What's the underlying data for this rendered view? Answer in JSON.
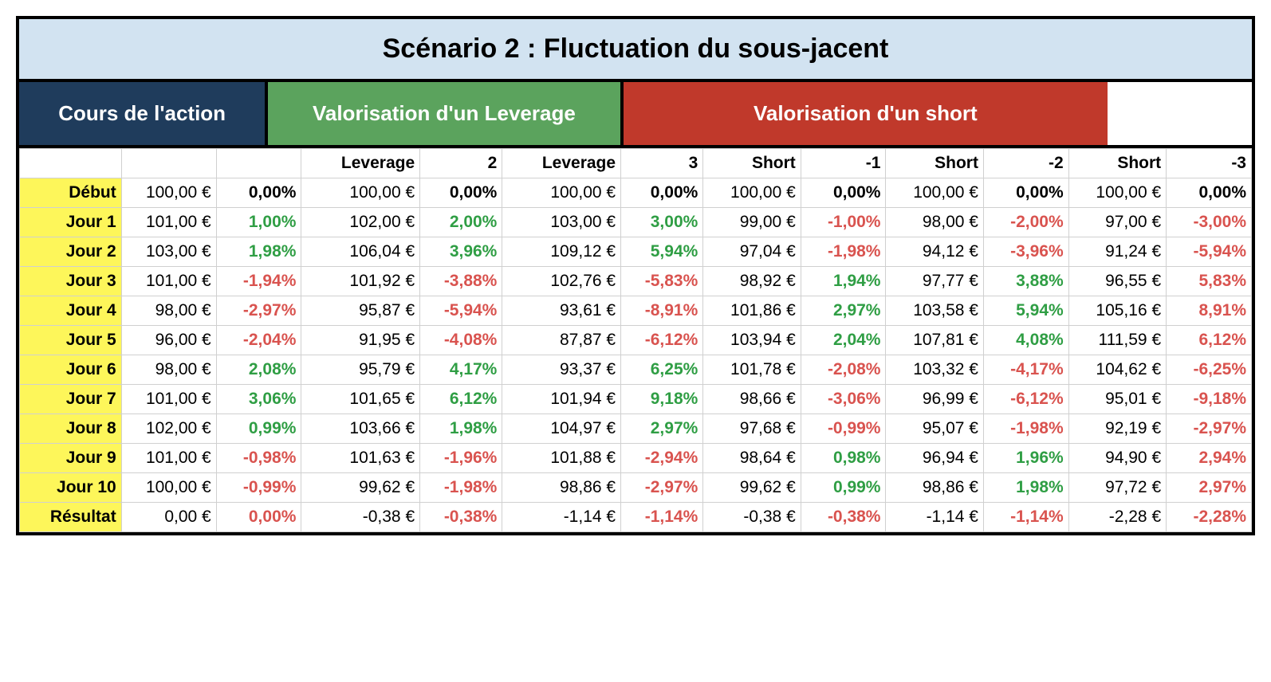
{
  "title": "Scénario 2 : Fluctuation du sous-jacent",
  "group_headers": {
    "g1": "Cours de l'action",
    "g2": "Valorisation d'un Leverage",
    "g3": "Valorisation d'un short"
  },
  "colors": {
    "title_bg": "#d2e3f1",
    "g1_bg": "#1f3c5c",
    "g2_bg": "#5ba35d",
    "g3_bg": "#c0392b",
    "label_bg": "#fdf65a",
    "pos": "#2f9e44",
    "neg": "#d9534f",
    "border": "#000000"
  },
  "column_widths_pct": [
    7.3,
    6.8,
    6.1,
    8.5,
    5.9,
    8.5,
    5.9,
    7.0,
    6.1,
    7.0,
    6.1,
    7.0,
    6.1
  ],
  "group_spans": [
    3,
    4,
    6
  ],
  "subheaders": [
    "",
    "",
    "",
    "Leverage",
    "2",
    "Leverage",
    "3",
    "Short",
    "-1",
    "Short",
    "-2",
    "Short",
    "-3"
  ],
  "row_labels": [
    "Début",
    "Jour 1",
    "Jour 2",
    "Jour 3",
    "Jour 4",
    "Jour 5",
    "Jour 6",
    "Jour 7",
    "Jour 8",
    "Jour 9",
    "Jour 10",
    "Résultat"
  ],
  "rows": [
    [
      {
        "v": "100,00 €"
      },
      {
        "v": "0,00%",
        "s": "zero"
      },
      {
        "v": "100,00 €"
      },
      {
        "v": "0,00%",
        "s": "zero"
      },
      {
        "v": "100,00 €"
      },
      {
        "v": "0,00%",
        "s": "zero"
      },
      {
        "v": "100,00 €"
      },
      {
        "v": "0,00%",
        "s": "zero"
      },
      {
        "v": "100,00 €"
      },
      {
        "v": "0,00%",
        "s": "zero"
      },
      {
        "v": "100,00 €"
      },
      {
        "v": "0,00%",
        "s": "zero"
      }
    ],
    [
      {
        "v": "101,00 €"
      },
      {
        "v": "1,00%",
        "s": "pos"
      },
      {
        "v": "102,00 €"
      },
      {
        "v": "2,00%",
        "s": "pos"
      },
      {
        "v": "103,00 €"
      },
      {
        "v": "3,00%",
        "s": "pos"
      },
      {
        "v": "99,00 €"
      },
      {
        "v": "-1,00%",
        "s": "neg"
      },
      {
        "v": "98,00 €"
      },
      {
        "v": "-2,00%",
        "s": "neg"
      },
      {
        "v": "97,00 €"
      },
      {
        "v": "-3,00%",
        "s": "neg"
      }
    ],
    [
      {
        "v": "103,00 €"
      },
      {
        "v": "1,98%",
        "s": "pos"
      },
      {
        "v": "106,04 €"
      },
      {
        "v": "3,96%",
        "s": "pos"
      },
      {
        "v": "109,12 €"
      },
      {
        "v": "5,94%",
        "s": "pos"
      },
      {
        "v": "97,04 €"
      },
      {
        "v": "-1,98%",
        "s": "neg"
      },
      {
        "v": "94,12 €"
      },
      {
        "v": "-3,96%",
        "s": "neg"
      },
      {
        "v": "91,24 €"
      },
      {
        "v": "-5,94%",
        "s": "neg"
      }
    ],
    [
      {
        "v": "101,00 €"
      },
      {
        "v": "-1,94%",
        "s": "neg"
      },
      {
        "v": "101,92 €"
      },
      {
        "v": "-3,88%",
        "s": "neg"
      },
      {
        "v": "102,76 €"
      },
      {
        "v": "-5,83%",
        "s": "neg"
      },
      {
        "v": "98,92 €"
      },
      {
        "v": "1,94%",
        "s": "pos"
      },
      {
        "v": "97,77 €"
      },
      {
        "v": "3,88%",
        "s": "pos"
      },
      {
        "v": "96,55 €"
      },
      {
        "v": "5,83%",
        "s": "neg"
      }
    ],
    [
      {
        "v": "98,00 €"
      },
      {
        "v": "-2,97%",
        "s": "neg"
      },
      {
        "v": "95,87 €"
      },
      {
        "v": "-5,94%",
        "s": "neg"
      },
      {
        "v": "93,61 €"
      },
      {
        "v": "-8,91%",
        "s": "neg"
      },
      {
        "v": "101,86 €"
      },
      {
        "v": "2,97%",
        "s": "pos"
      },
      {
        "v": "103,58 €"
      },
      {
        "v": "5,94%",
        "s": "pos"
      },
      {
        "v": "105,16 €"
      },
      {
        "v": "8,91%",
        "s": "neg"
      }
    ],
    [
      {
        "v": "96,00 €"
      },
      {
        "v": "-2,04%",
        "s": "neg"
      },
      {
        "v": "91,95 €"
      },
      {
        "v": "-4,08%",
        "s": "neg"
      },
      {
        "v": "87,87 €"
      },
      {
        "v": "-6,12%",
        "s": "neg"
      },
      {
        "v": "103,94 €"
      },
      {
        "v": "2,04%",
        "s": "pos"
      },
      {
        "v": "107,81 €"
      },
      {
        "v": "4,08%",
        "s": "pos"
      },
      {
        "v": "111,59 €"
      },
      {
        "v": "6,12%",
        "s": "neg"
      }
    ],
    [
      {
        "v": "98,00 €"
      },
      {
        "v": "2,08%",
        "s": "pos"
      },
      {
        "v": "95,79 €"
      },
      {
        "v": "4,17%",
        "s": "pos"
      },
      {
        "v": "93,37 €"
      },
      {
        "v": "6,25%",
        "s": "pos"
      },
      {
        "v": "101,78 €"
      },
      {
        "v": "-2,08%",
        "s": "neg"
      },
      {
        "v": "103,32 €"
      },
      {
        "v": "-4,17%",
        "s": "neg"
      },
      {
        "v": "104,62 €"
      },
      {
        "v": "-6,25%",
        "s": "neg"
      }
    ],
    [
      {
        "v": "101,00 €"
      },
      {
        "v": "3,06%",
        "s": "pos"
      },
      {
        "v": "101,65 €"
      },
      {
        "v": "6,12%",
        "s": "pos"
      },
      {
        "v": "101,94 €"
      },
      {
        "v": "9,18%",
        "s": "pos"
      },
      {
        "v": "98,66 €"
      },
      {
        "v": "-3,06%",
        "s": "neg"
      },
      {
        "v": "96,99 €"
      },
      {
        "v": "-6,12%",
        "s": "neg"
      },
      {
        "v": "95,01 €"
      },
      {
        "v": "-9,18%",
        "s": "neg"
      }
    ],
    [
      {
        "v": "102,00 €"
      },
      {
        "v": "0,99%",
        "s": "pos"
      },
      {
        "v": "103,66 €"
      },
      {
        "v": "1,98%",
        "s": "pos"
      },
      {
        "v": "104,97 €"
      },
      {
        "v": "2,97%",
        "s": "pos"
      },
      {
        "v": "97,68 €"
      },
      {
        "v": "-0,99%",
        "s": "neg"
      },
      {
        "v": "95,07 €"
      },
      {
        "v": "-1,98%",
        "s": "neg"
      },
      {
        "v": "92,19 €"
      },
      {
        "v": "-2,97%",
        "s": "neg"
      }
    ],
    [
      {
        "v": "101,00 €"
      },
      {
        "v": "-0,98%",
        "s": "neg"
      },
      {
        "v": "101,63 €"
      },
      {
        "v": "-1,96%",
        "s": "neg"
      },
      {
        "v": "101,88 €"
      },
      {
        "v": "-2,94%",
        "s": "neg"
      },
      {
        "v": "98,64 €"
      },
      {
        "v": "0,98%",
        "s": "pos"
      },
      {
        "v": "96,94 €"
      },
      {
        "v": "1,96%",
        "s": "pos"
      },
      {
        "v": "94,90 €"
      },
      {
        "v": "2,94%",
        "s": "neg"
      }
    ],
    [
      {
        "v": "100,00 €"
      },
      {
        "v": "-0,99%",
        "s": "neg"
      },
      {
        "v": "99,62 €"
      },
      {
        "v": "-1,98%",
        "s": "neg"
      },
      {
        "v": "98,86 €"
      },
      {
        "v": "-2,97%",
        "s": "neg"
      },
      {
        "v": "99,62 €"
      },
      {
        "v": "0,99%",
        "s": "pos"
      },
      {
        "v": "98,86 €"
      },
      {
        "v": "1,98%",
        "s": "pos"
      },
      {
        "v": "97,72 €"
      },
      {
        "v": "2,97%",
        "s": "neg"
      }
    ],
    [
      {
        "v": "0,00 €"
      },
      {
        "v": "0,00%",
        "s": "neg"
      },
      {
        "v": "-0,38 €"
      },
      {
        "v": "-0,38%",
        "s": "neg"
      },
      {
        "v": "-1,14 €"
      },
      {
        "v": "-1,14%",
        "s": "neg"
      },
      {
        "v": "-0,38 €"
      },
      {
        "v": "-0,38%",
        "s": "neg"
      },
      {
        "v": "-1,14 €"
      },
      {
        "v": "-1,14%",
        "s": "neg"
      },
      {
        "v": "-2,28 €"
      },
      {
        "v": "-2,28%",
        "s": "neg"
      }
    ]
  ]
}
